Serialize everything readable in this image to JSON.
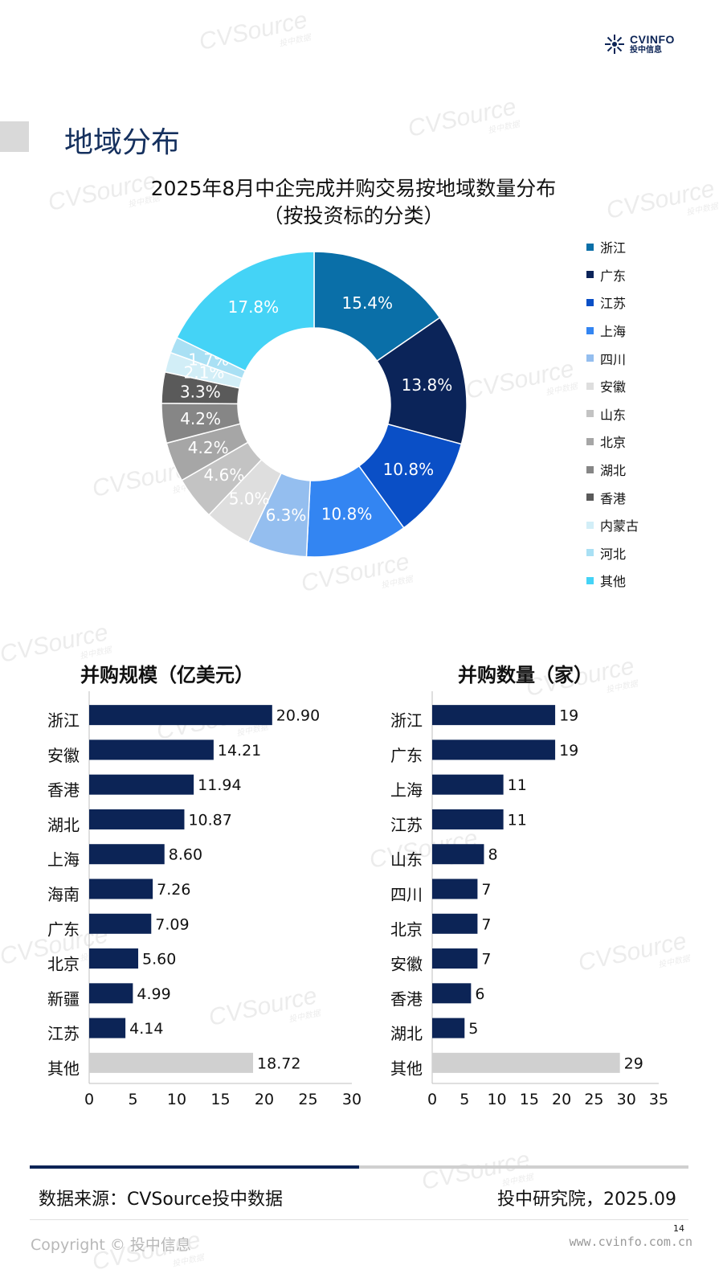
{
  "header": {
    "logo_main": "CVINFO",
    "logo_sub": "投中信息",
    "watermark": "CVSource",
    "watermark_sub": "投中数据"
  },
  "section": {
    "title": "地域分布"
  },
  "chart_data": [
    {
      "type": "pie",
      "title": "2025年8月中企完成并购交易按地域数量分布",
      "subtitle": "（按投资标的分类）",
      "donut": true,
      "legend_position": "right",
      "slices": [
        {
          "label": "浙江",
          "value": 15.4,
          "text": "15.4%",
          "color": "#0a6fa8"
        },
        {
          "label": "广东",
          "value": 13.8,
          "text": "13.8%",
          "color": "#0b2459"
        },
        {
          "label": "江苏",
          "value": 10.8,
          "text": "10.8%",
          "color": "#0a4fc6"
        },
        {
          "label": "上海",
          "value": 10.8,
          "text": "10.8%",
          "color": "#3385f2"
        },
        {
          "label": "四川",
          "value": 6.3,
          "text": "6.3%",
          "color": "#94beef"
        },
        {
          "label": "安徽",
          "value": 5.0,
          "text": "5.0%",
          "color": "#dedede"
        },
        {
          "label": "山东",
          "value": 4.6,
          "text": "4.6%",
          "color": "#c3c3c3"
        },
        {
          "label": "北京",
          "value": 4.2,
          "text": "4.2%",
          "color": "#a6a6a6"
        },
        {
          "label": "湖北",
          "value": 4.2,
          "text": "4.2%",
          "color": "#868686"
        },
        {
          "label": "香港",
          "value": 3.3,
          "text": "3.3%",
          "color": "#5a5a5a"
        },
        {
          "label": "内蒙古",
          "value": 2.1,
          "text": "2.1%",
          "color": "#d2eef7"
        },
        {
          "label": "河北",
          "value": 1.7,
          "text": "1.7%",
          "color": "#a9e0f4"
        },
        {
          "label": "其他",
          "value": 17.8,
          "text": "17.8%",
          "color": "#44d3f6"
        }
      ]
    },
    {
      "type": "bar",
      "orientation": "horizontal",
      "title": "并购规模（亿美元）",
      "categories": [
        "浙江",
        "安徽",
        "香港",
        "湖北",
        "上海",
        "海南",
        "广东",
        "北京",
        "新疆",
        "江苏",
        "其他"
      ],
      "values": [
        20.9,
        14.21,
        11.94,
        10.87,
        8.6,
        7.26,
        7.09,
        5.6,
        4.99,
        4.14,
        18.72
      ],
      "value_labels": [
        "20.90",
        "14.21",
        "11.94",
        "10.87",
        "8.60",
        "7.26",
        "7.09",
        "5.60",
        "4.99",
        "4.14",
        "18.72"
      ],
      "xlim": [
        0,
        30
      ],
      "ticks": [
        0,
        5,
        10,
        15,
        20,
        25,
        30
      ],
      "color": "#0c2456",
      "other_color": "#d0d0d0"
    },
    {
      "type": "bar",
      "orientation": "horizontal",
      "title": "并购数量（家）",
      "categories": [
        "浙江",
        "广东",
        "上海",
        "江苏",
        "山东",
        "四川",
        "北京",
        "安徽",
        "香港",
        "湖北",
        "其他"
      ],
      "values": [
        19,
        19,
        11,
        11,
        8,
        7,
        7,
        7,
        6,
        5,
        29
      ],
      "value_labels": [
        "19",
        "19",
        "11",
        "11",
        "8",
        "7",
        "7",
        "7",
        "6",
        "5",
        "29"
      ],
      "xlim": [
        0,
        35
      ],
      "ticks": [
        0,
        5,
        10,
        15,
        20,
        25,
        30,
        35
      ],
      "color": "#0c2456",
      "other_color": "#d0d0d0"
    }
  ],
  "footer": {
    "source": "数据来源：CVSource投中数据",
    "institute": "投中研究院，2025.09",
    "page_number": "14",
    "copyright": "Copyright © 投中信息",
    "website": "www.cvinfo.com.cn"
  }
}
